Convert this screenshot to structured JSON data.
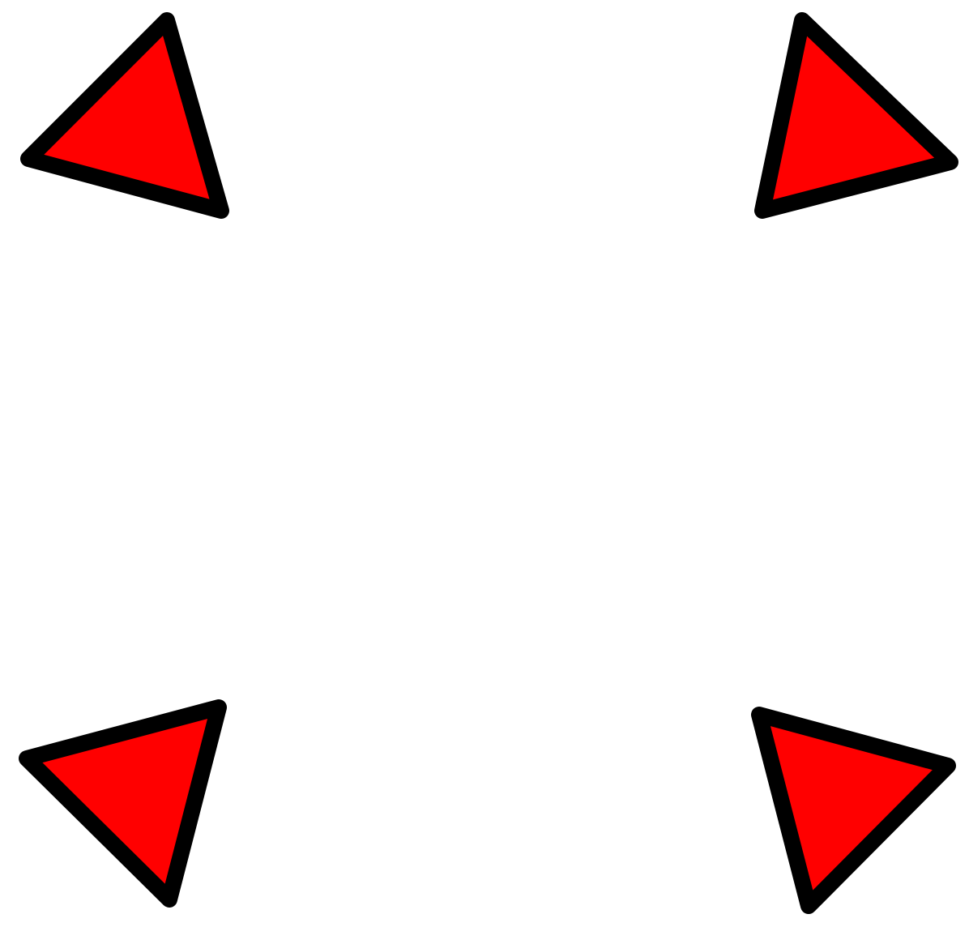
{
  "markers": [
    {
      "name": "top-left-marker-icon",
      "direction": "pointing-up-left"
    },
    {
      "name": "top-right-marker-icon",
      "direction": "pointing-up-right"
    },
    {
      "name": "bottom-left-marker-icon",
      "direction": "pointing-down-left"
    },
    {
      "name": "bottom-right-marker-icon",
      "direction": "pointing-down-right"
    }
  ],
  "colors": {
    "background": "#ffffff",
    "fill": "#ff0000",
    "outline": "#000000"
  }
}
